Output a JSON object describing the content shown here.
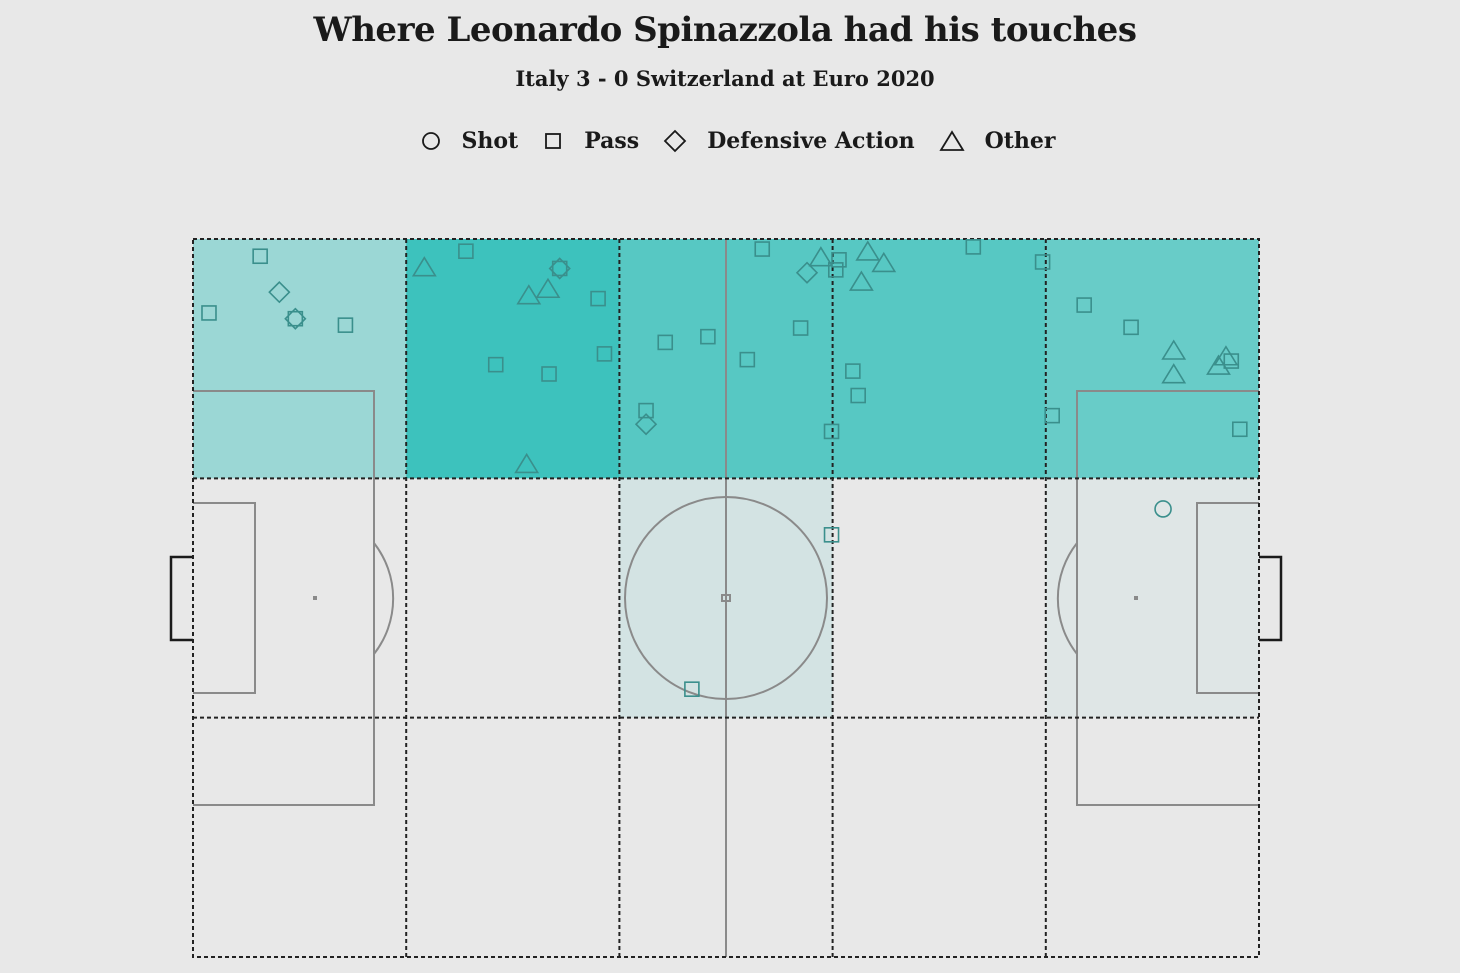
{
  "chart_data": {
    "type": "scatter",
    "title": "Where Leonardo Spinazzola had his touches",
    "subtitle": "Italy 3 - 0 Switzerland at Euro 2020",
    "legend": [
      {
        "name": "Shot",
        "shape": "circle"
      },
      {
        "name": "Pass",
        "shape": "square"
      },
      {
        "name": "Defensive Action",
        "shape": "diamond"
      },
      {
        "name": "Other",
        "shape": "triangle"
      }
    ],
    "legend_placement": "top",
    "pitch": {
      "length": 100,
      "width": 100,
      "zones_x": 5,
      "zones_y": 3
    },
    "zone_shading": [
      {
        "col": 0,
        "row": 0,
        "level": 0.45
      },
      {
        "col": 1,
        "row": 0,
        "level": 1.0
      },
      {
        "col": 2,
        "row": 0,
        "level": 0.85
      },
      {
        "col": 3,
        "row": 0,
        "level": 0.85
      },
      {
        "col": 4,
        "row": 0,
        "level": 0.75
      },
      {
        "col": 2,
        "row": 1,
        "level": 0.12
      },
      {
        "col": 4,
        "row": 1,
        "level": 0.05
      }
    ],
    "colors": {
      "background": "#e8e8e8",
      "shade_max": "#3dc2bd",
      "shade_light": "#cfe3e4",
      "marker": "#3a8f8c",
      "pitch_lines": "#8a8a8a",
      "zone_lines": "#222222"
    },
    "touches": [
      {
        "type": "pass",
        "x": 6.3,
        "y": 2.4
      },
      {
        "type": "pass",
        "x": 1.5,
        "y": 10.3
      },
      {
        "type": "defensive",
        "x": 8.1,
        "y": 7.4
      },
      {
        "type": "defensive",
        "x": 9.6,
        "y": 11.1
      },
      {
        "type": "pass",
        "x": 9.6,
        "y": 11.1
      },
      {
        "type": "pass",
        "x": 14.3,
        "y": 12.0
      },
      {
        "type": "other",
        "x": 21.7,
        "y": 4.0
      },
      {
        "type": "pass",
        "x": 25.6,
        "y": 1.7
      },
      {
        "type": "defensive",
        "x": 34.4,
        "y": 4.1
      },
      {
        "type": "pass",
        "x": 34.4,
        "y": 4.1
      },
      {
        "type": "other",
        "x": 33.3,
        "y": 7.0
      },
      {
        "type": "other",
        "x": 31.5,
        "y": 7.9
      },
      {
        "type": "pass",
        "x": 38.0,
        "y": 8.3
      },
      {
        "type": "pass",
        "x": 38.6,
        "y": 16.0
      },
      {
        "type": "pass",
        "x": 28.4,
        "y": 17.5
      },
      {
        "type": "pass",
        "x": 33.4,
        "y": 18.8
      },
      {
        "type": "other",
        "x": 31.3,
        "y": 31.4
      },
      {
        "type": "pass",
        "x": 42.5,
        "y": 23.9
      },
      {
        "type": "defensive",
        "x": 42.5,
        "y": 25.8
      },
      {
        "type": "pass",
        "x": 44.3,
        "y": 14.4
      },
      {
        "type": "pass",
        "x": 48.3,
        "y": 13.6
      },
      {
        "type": "pass",
        "x": 52.0,
        "y": 16.8
      },
      {
        "type": "pass",
        "x": 53.4,
        "y": 1.4
      },
      {
        "type": "pass",
        "x": 57.0,
        "y": 12.4
      },
      {
        "type": "defensive",
        "x": 57.6,
        "y": 4.7
      },
      {
        "type": "other",
        "x": 58.9,
        "y": 2.6
      },
      {
        "type": "pass",
        "x": 60.3,
        "y": 4.3
      },
      {
        "type": "pass",
        "x": 60.6,
        "y": 2.9
      },
      {
        "type": "other",
        "x": 63.3,
        "y": 1.8
      },
      {
        "type": "other",
        "x": 64.8,
        "y": 3.4
      },
      {
        "type": "other",
        "x": 62.7,
        "y": 6.0
      },
      {
        "type": "pass",
        "x": 59.9,
        "y": 26.8
      },
      {
        "type": "pass",
        "x": 61.9,
        "y": 18.4
      },
      {
        "type": "pass",
        "x": 62.4,
        "y": 21.8
      },
      {
        "type": "pass",
        "x": 73.2,
        "y": 1.1
      },
      {
        "type": "pass",
        "x": 79.7,
        "y": 3.2
      },
      {
        "type": "pass",
        "x": 83.6,
        "y": 9.2
      },
      {
        "type": "pass",
        "x": 88.0,
        "y": 12.3
      },
      {
        "type": "pass",
        "x": 80.6,
        "y": 24.6
      },
      {
        "type": "other",
        "x": 92.0,
        "y": 15.6
      },
      {
        "type": "other",
        "x": 92.0,
        "y": 18.9
      },
      {
        "type": "pass",
        "x": 97.4,
        "y": 17.0
      },
      {
        "type": "other",
        "x": 96.9,
        "y": 16.4
      },
      {
        "type": "other",
        "x": 96.2,
        "y": 17.7
      },
      {
        "type": "pass",
        "x": 98.2,
        "y": 26.5
      },
      {
        "type": "shot",
        "x": 91.0,
        "y": 37.6
      },
      {
        "type": "pass",
        "x": 59.9,
        "y": 41.2
      },
      {
        "type": "pass",
        "x": 46.8,
        "y": 62.7
      }
    ]
  }
}
